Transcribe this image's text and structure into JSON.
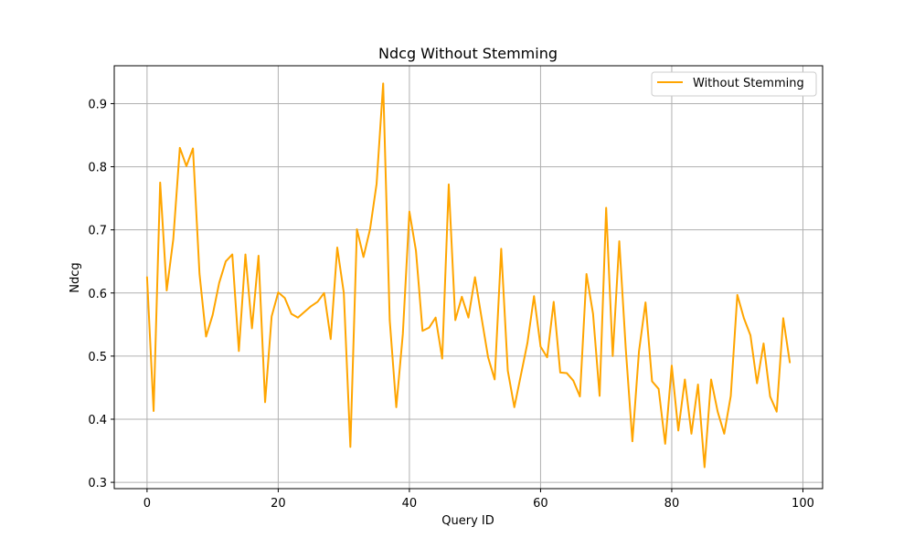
{
  "chart_data": {
    "type": "line",
    "title": "Ndcg Without Stemming",
    "xlabel": "Query ID",
    "ylabel": "Ndcg",
    "xlim": [
      -5,
      103
    ],
    "ylim": [
      0.29,
      0.96
    ],
    "xticks": [
      0,
      20,
      40,
      60,
      80,
      100
    ],
    "yticks": [
      0.3,
      0.4,
      0.5,
      0.6,
      0.7,
      0.8,
      0.9
    ],
    "xtick_labels": [
      "0",
      "20",
      "40",
      "60",
      "80",
      "100"
    ],
    "ytick_labels": [
      "0.3",
      "0.4",
      "0.5",
      "0.6",
      "0.7",
      "0.8",
      "0.9"
    ],
    "grid": true,
    "legend_position": "top-right",
    "series": [
      {
        "name": "Without Stemming",
        "color": "#ffa500",
        "x": [
          0,
          1,
          2,
          3,
          4,
          5,
          6,
          7,
          8,
          9,
          10,
          11,
          12,
          13,
          14,
          15,
          16,
          17,
          18,
          19,
          20,
          21,
          22,
          23,
          24,
          25,
          26,
          27,
          28,
          29,
          30,
          31,
          32,
          33,
          34,
          35,
          36,
          37,
          38,
          39,
          40,
          41,
          42,
          43,
          44,
          45,
          46,
          47,
          48,
          49,
          50,
          51,
          52,
          53,
          54,
          55,
          56,
          57,
          58,
          59,
          60,
          61,
          62,
          63,
          64,
          65,
          66,
          67,
          68,
          69,
          70,
          71,
          72,
          73,
          74,
          75,
          76,
          77,
          78,
          79,
          80,
          81,
          82,
          83,
          84,
          85,
          86,
          87,
          88,
          89,
          90,
          91,
          92,
          93,
          94,
          95,
          96,
          97,
          98
        ],
        "values": [
          0.625,
          0.413,
          0.775,
          0.604,
          0.685,
          0.83,
          0.801,
          0.829,
          0.63,
          0.531,
          0.565,
          0.616,
          0.65,
          0.661,
          0.508,
          0.661,
          0.544,
          0.659,
          0.427,
          0.563,
          0.601,
          0.592,
          0.567,
          0.561,
          0.57,
          0.579,
          0.586,
          0.6,
          0.527,
          0.672,
          0.6,
          0.356,
          0.701,
          0.657,
          0.701,
          0.773,
          0.932,
          0.557,
          0.419,
          0.535,
          0.729,
          0.667,
          0.54,
          0.545,
          0.561,
          0.496,
          0.772,
          0.557,
          0.594,
          0.561,
          0.625,
          0.561,
          0.498,
          0.463,
          0.67,
          0.477,
          0.419,
          0.47,
          0.521,
          0.595,
          0.515,
          0.498,
          0.586,
          0.474,
          0.473,
          0.461,
          0.436,
          0.63,
          0.567,
          0.437,
          0.735,
          0.5,
          0.682,
          0.51,
          0.365,
          0.507,
          0.585,
          0.46,
          0.448,
          0.361,
          0.485,
          0.382,
          0.463,
          0.377,
          0.455,
          0.324,
          0.463,
          0.412,
          0.377,
          0.437,
          0.597,
          0.56,
          0.533,
          0.457,
          0.52,
          0.436,
          0.412,
          0.56,
          0.49
        ]
      }
    ]
  }
}
